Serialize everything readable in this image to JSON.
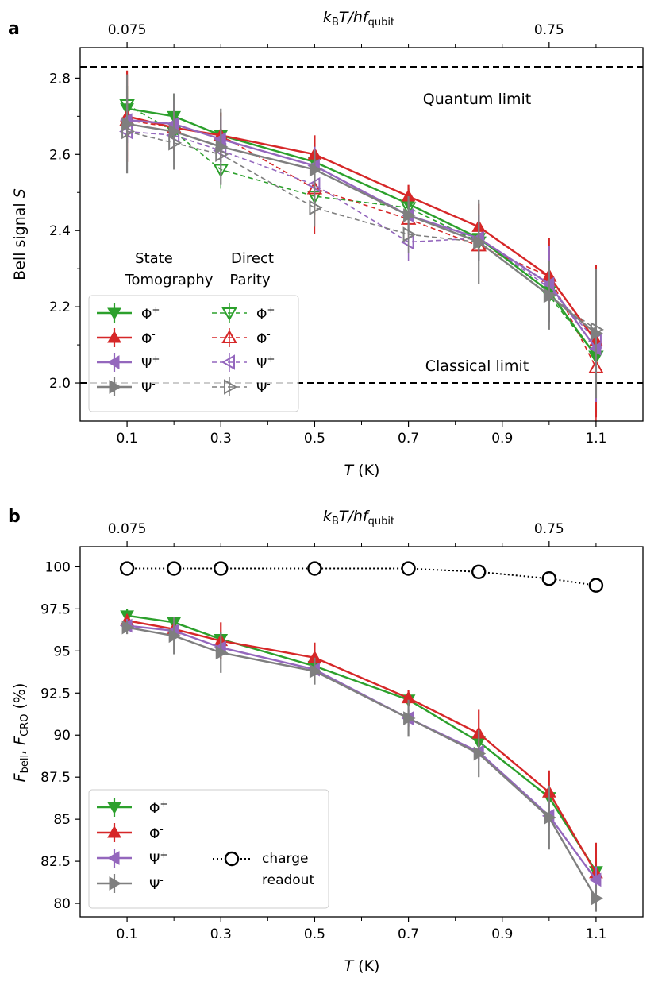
{
  "chart_data": [
    {
      "type": "line",
      "panel": "a",
      "panel_letter": "a",
      "xlabel": "T (K)",
      "xlabel_italic": "T",
      "xlabel_unit": " (K)",
      "ylabel": "Bell signal S",
      "ylabel_plain": "Bell signal ",
      "ylabel_italic": "S",
      "top_xlabel": {
        "k": "k",
        "B": "B",
        "T": "T/hf",
        "sub": "qubit"
      },
      "xlim": [
        0.0,
        1.2
      ],
      "ylim": [
        1.9,
        2.88
      ],
      "x_ticks": [
        0.1,
        0.3,
        0.5,
        0.7,
        0.9,
        1.1
      ],
      "x_tick_labels": [
        "0.1",
        "0.3",
        "0.5",
        "0.7",
        "0.9",
        "1.1"
      ],
      "x_minor_ticks": [
        0.2,
        0.4,
        0.6,
        0.8,
        1.0
      ],
      "y_ticks": [
        2.0,
        2.2,
        2.4,
        2.6,
        2.8
      ],
      "y_tick_labels": [
        "2.0",
        "2.2",
        "2.4",
        "2.6",
        "2.8"
      ],
      "y_minor_ticks": [
        2.1,
        2.3,
        2.5,
        2.7
      ],
      "top_ticks": [
        0.1,
        1.0
      ],
      "top_tick_labels": [
        "0.075",
        "0.75"
      ],
      "top_minor_ticks": [
        0.2,
        0.3,
        0.4,
        0.5,
        0.6,
        0.7,
        0.8,
        0.9,
        1.1
      ],
      "reference_lines": [
        {
          "y": 2.83,
          "label": "Quantum limit"
        },
        {
          "y": 2.0,
          "label": "Classical limit"
        }
      ],
      "legend_headers": {
        "col1_line1": "State",
        "col1_line2": "Tomography",
        "col2_line1": "Direct",
        "col2_line2": "Parity"
      },
      "x": [
        0.1,
        0.2,
        0.3,
        0.5,
        0.7,
        0.85,
        1.0,
        1.1
      ],
      "series": [
        {
          "name": "Φ+",
          "label": "Φ",
          "sup": "+",
          "method": "State Tomography",
          "marker": "tri-down",
          "filled": true,
          "dashed": false,
          "color": "#2ca02c",
          "values": [
            2.72,
            2.7,
            2.65,
            2.58,
            2.47,
            2.38,
            2.24,
            2.07
          ],
          "err": [
            0.06,
            0.06,
            0.06,
            0.05,
            0.04,
            0.06,
            0.08,
            0.15
          ]
        },
        {
          "name": "Φ-",
          "label": "Φ",
          "sup": "-",
          "method": "State Tomography",
          "marker": "tri-up",
          "filled": true,
          "dashed": false,
          "color": "#d62728",
          "values": [
            2.7,
            2.67,
            2.65,
            2.6,
            2.49,
            2.41,
            2.28,
            2.11
          ],
          "err": [
            0.12,
            0.06,
            0.06,
            0.05,
            0.03,
            0.06,
            0.1,
            0.2
          ]
        },
        {
          "name": "Ψ+",
          "label": "Ψ",
          "sup": "+",
          "method": "State Tomography",
          "marker": "tri-left",
          "filled": true,
          "dashed": false,
          "color": "#9467bd",
          "values": [
            2.69,
            2.68,
            2.64,
            2.57,
            2.44,
            2.38,
            2.26,
            2.09
          ],
          "err": [
            0.06,
            0.06,
            0.06,
            0.05,
            0.04,
            0.06,
            0.1,
            0.14
          ]
        },
        {
          "name": "Ψ-",
          "label": "Ψ",
          "sup": "-",
          "method": "State Tomography",
          "marker": "tri-right",
          "filled": true,
          "dashed": false,
          "color": "#7f7f7f",
          "values": [
            2.68,
            2.66,
            2.62,
            2.56,
            2.44,
            2.37,
            2.23,
            2.13
          ],
          "err": [
            0.13,
            0.1,
            0.1,
            0.05,
            0.05,
            0.11,
            0.09,
            0.17
          ]
        },
        {
          "name": "Φ+",
          "label": "Φ",
          "sup": "+",
          "method": "Direct Parity",
          "marker": "tri-down",
          "filled": false,
          "dashed": true,
          "color": "#2ca02c",
          "values": [
            2.73,
            2.66,
            2.56,
            2.49,
            2.46,
            2.37,
            2.23,
            2.07
          ],
          "err": [
            0.05,
            0.05,
            0.05,
            0.05,
            0.04,
            0.05,
            0.07,
            0.1
          ]
        },
        {
          "name": "Φ-",
          "label": "Φ",
          "sup": "-",
          "method": "Direct Parity",
          "marker": "tri-up",
          "filled": false,
          "dashed": true,
          "color": "#d62728",
          "values": [
            2.69,
            2.67,
            2.65,
            2.51,
            2.43,
            2.36,
            2.28,
            2.04
          ],
          "err": [
            0.05,
            0.05,
            0.05,
            0.12,
            0.05,
            0.05,
            0.07,
            0.14
          ]
        },
        {
          "name": "Ψ+",
          "label": "Ψ",
          "sup": "+",
          "method": "Direct Parity",
          "marker": "tri-left",
          "filled": false,
          "dashed": true,
          "color": "#9467bd",
          "values": [
            2.66,
            2.65,
            2.61,
            2.52,
            2.37,
            2.38,
            2.25,
            2.11
          ],
          "err": [
            0.05,
            0.05,
            0.05,
            0.05,
            0.05,
            0.1,
            0.06,
            0.08
          ]
        },
        {
          "name": "Ψ-",
          "label": "Ψ",
          "sup": "-",
          "method": "Direct Parity",
          "marker": "tri-right",
          "filled": false,
          "dashed": true,
          "color": "#7f7f7f",
          "values": [
            2.66,
            2.63,
            2.6,
            2.46,
            2.39,
            2.37,
            2.23,
            2.14
          ],
          "err": [
            0.05,
            0.05,
            0.05,
            0.05,
            0.05,
            0.05,
            0.06,
            0.1
          ]
        }
      ]
    },
    {
      "type": "line",
      "panel": "b",
      "panel_letter": "b",
      "xlabel": "T (K)",
      "xlabel_italic": "T",
      "xlabel_unit": " (K)",
      "ylabel": "Fbell, FCRO (%)",
      "ylabel_parts": {
        "F1": "F",
        "s1": "bell",
        "sep": ", ",
        "F2": "F",
        "s2": "CRO",
        "unit": " (%)"
      },
      "top_xlabel": {
        "k": "k",
        "B": "B",
        "T": "T/hf",
        "sub": "qubit"
      },
      "xlim": [
        0.0,
        1.2
      ],
      "ylim": [
        79.2,
        101.2
      ],
      "x_ticks": [
        0.1,
        0.3,
        0.5,
        0.7,
        0.9,
        1.1
      ],
      "x_tick_labels": [
        "0.1",
        "0.3",
        "0.5",
        "0.7",
        "0.9",
        "1.1"
      ],
      "x_minor_ticks": [
        0.2,
        0.4,
        0.6,
        0.8,
        1.0
      ],
      "y_ticks": [
        80,
        82.5,
        85,
        87.5,
        90,
        92.5,
        95,
        97.5,
        100
      ],
      "y_tick_labels": [
        "80",
        "82.5",
        "85",
        "87.5",
        "90",
        "92.5",
        "95",
        "97.5",
        "100"
      ],
      "top_ticks": [
        0.1,
        1.0
      ],
      "top_tick_labels": [
        "0.075",
        "0.75"
      ],
      "top_minor_ticks": [
        0.2,
        0.3,
        0.4,
        0.5,
        0.6,
        0.7,
        0.8,
        0.9,
        1.1
      ],
      "x": [
        0.1,
        0.2,
        0.3,
        0.5,
        0.7,
        0.85,
        1.0,
        1.1
      ],
      "series": [
        {
          "name": "Φ+",
          "label": "Φ",
          "sup": "+",
          "marker": "tri-down",
          "filled": true,
          "dashed": false,
          "color": "#2ca02c",
          "values": [
            97.1,
            96.7,
            95.7,
            94.1,
            92.1,
            89.6,
            86.3,
            81.9
          ],
          "err": [
            0.4,
            0.3,
            0.4,
            0.4,
            0.4,
            0.5,
            0.6,
            0.8
          ]
        },
        {
          "name": "Φ-",
          "label": "Φ",
          "sup": "-",
          "marker": "tri-up",
          "filled": true,
          "dashed": false,
          "color": "#d62728",
          "values": [
            96.8,
            96.3,
            95.6,
            94.6,
            92.2,
            90.1,
            86.6,
            81.8
          ],
          "err": [
            0.4,
            0.6,
            1.1,
            0.9,
            0.5,
            1.4,
            1.3,
            1.8
          ]
        },
        {
          "name": "Ψ+",
          "label": "Ψ",
          "sup": "+",
          "marker": "tri-left",
          "filled": true,
          "dashed": false,
          "color": "#9467bd",
          "values": [
            96.5,
            96.2,
            95.2,
            93.9,
            91.0,
            89.0,
            85.2,
            81.4
          ],
          "err": [
            0.4,
            0.4,
            0.5,
            0.4,
            0.5,
            0.5,
            0.6,
            0.8
          ]
        },
        {
          "name": "Ψ-",
          "label": "Ψ",
          "sup": "-",
          "marker": "tri-right",
          "filled": true,
          "dashed": false,
          "color": "#7f7f7f",
          "values": [
            96.4,
            95.9,
            94.9,
            93.8,
            91.0,
            88.9,
            85.1,
            80.3
          ],
          "err": [
            0.4,
            1.1,
            1.2,
            0.8,
            1.1,
            1.4,
            1.9,
            0.8
          ]
        },
        {
          "name": "charge readout",
          "label": "charge",
          "label2": "readout",
          "marker": "circle",
          "filled": false,
          "dotted": true,
          "color": "#000000",
          "values": [
            99.9,
            99.9,
            99.9,
            99.9,
            99.9,
            99.7,
            99.3,
            98.9
          ],
          "err": [
            0.1,
            0.1,
            0.1,
            0.1,
            0.1,
            0.1,
            0.1,
            0.1
          ]
        }
      ]
    }
  ]
}
